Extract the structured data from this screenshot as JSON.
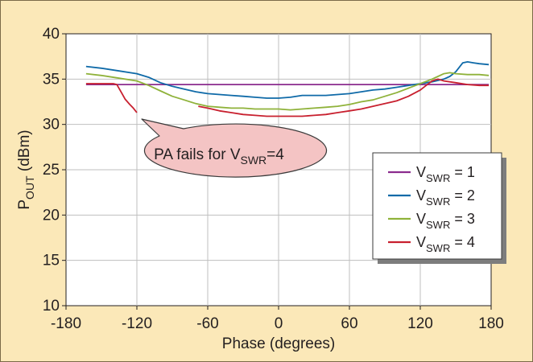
{
  "chart_data": {
    "type": "line",
    "xlabel": {
      "main": "Phase (degrees)"
    },
    "ylabel": {
      "main": "P",
      "sub": "OUT",
      "suffix": " (dBm)"
    },
    "xlim": [
      -180,
      180
    ],
    "ylim": [
      10,
      40
    ],
    "xticks": [
      -180,
      -120,
      -60,
      0,
      60,
      120,
      180
    ],
    "yticks": [
      10,
      15,
      20,
      25,
      30,
      35,
      40
    ],
    "grid": true,
    "legend_position": "bottom-right",
    "colors": {
      "background": "#fbe8b8",
      "plot_area": "#ffffff",
      "grid": "#bfbfbf",
      "callout_fill": "#f4c4c4"
    },
    "series": [
      {
        "name": {
          "main": "V",
          "sub": "SWR",
          "suffix": " = 1"
        },
        "color": "#8b2c8e",
        "x": [
          -163,
          178
        ],
        "y": [
          34.4,
          34.4
        ]
      },
      {
        "name": {
          "main": "V",
          "sub": "SWR",
          "suffix": " = 2"
        },
        "color": "#0f6aa8",
        "x": [
          -163,
          -150,
          -135,
          -120,
          -110,
          -100,
          -90,
          -80,
          -70,
          -60,
          -50,
          -40,
          -30,
          -20,
          -10,
          0,
          10,
          20,
          30,
          40,
          50,
          60,
          70,
          80,
          90,
          100,
          110,
          120,
          130,
          140,
          145,
          150,
          153,
          156,
          160,
          165,
          170,
          178
        ],
        "y": [
          36.4,
          36.2,
          35.9,
          35.6,
          35.2,
          34.6,
          34.2,
          33.9,
          33.6,
          33.4,
          33.3,
          33.2,
          33.1,
          33.0,
          32.9,
          32.9,
          33.0,
          33.2,
          33.2,
          33.2,
          33.3,
          33.4,
          33.6,
          33.8,
          33.9,
          34.1,
          34.3,
          34.5,
          34.7,
          35.0,
          35.3,
          35.8,
          36.3,
          36.8,
          36.9,
          36.8,
          36.7,
          36.6
        ]
      },
      {
        "name": {
          "main": "V",
          "sub": "SWR",
          "suffix": " = 3"
        },
        "color": "#8fb23a",
        "x": [
          -163,
          -150,
          -135,
          -120,
          -110,
          -100,
          -90,
          -80,
          -70,
          -60,
          -50,
          -40,
          -30,
          -20,
          -10,
          0,
          10,
          20,
          30,
          40,
          50,
          60,
          70,
          80,
          90,
          100,
          110,
          120,
          130,
          135,
          140,
          145,
          150,
          160,
          170,
          178
        ],
        "y": [
          35.6,
          35.4,
          35.1,
          34.8,
          34.3,
          33.7,
          33.1,
          32.7,
          32.3,
          32.0,
          31.9,
          31.8,
          31.8,
          31.7,
          31.7,
          31.7,
          31.6,
          31.7,
          31.8,
          31.9,
          32.0,
          32.2,
          32.5,
          32.7,
          33.1,
          33.5,
          34.0,
          34.5,
          35.0,
          35.3,
          35.6,
          35.7,
          35.6,
          35.5,
          35.5,
          35.4
        ]
      },
      {
        "name": {
          "main": "V",
          "sub": "SWR",
          "suffix": " = 4"
        },
        "color": "#c8202f",
        "segments": [
          {
            "x": [
              -163,
              -150,
              -140,
              -137,
              -133,
              -130,
              -126,
              -123,
              -120
            ],
            "y": [
              34.5,
              34.5,
              34.5,
              34.4,
              33.5,
              32.8,
              32.2,
              31.8,
              31.3
            ]
          },
          {
            "x": [
              -68,
              -60,
              -50,
              -40,
              -30,
              -20,
              -10,
              0,
              10,
              20,
              30,
              40,
              50,
              60,
              70,
              80,
              90,
              100,
              110,
              120,
              125,
              130,
              135,
              140,
              150,
              160,
              170,
              178
            ],
            "y": [
              32.0,
              31.8,
              31.5,
              31.3,
              31.1,
              31.0,
              30.9,
              30.9,
              30.9,
              30.9,
              31.0,
              31.1,
              31.3,
              31.5,
              31.7,
              32.0,
              32.3,
              32.6,
              33.1,
              33.8,
              34.3,
              34.8,
              35.0,
              34.8,
              34.6,
              34.4,
              34.3,
              34.3
            ]
          }
        ]
      }
    ],
    "annotations": [
      {
        "main": "PA fails for V",
        "sub": "SWR",
        "suffix": "=4"
      }
    ]
  }
}
